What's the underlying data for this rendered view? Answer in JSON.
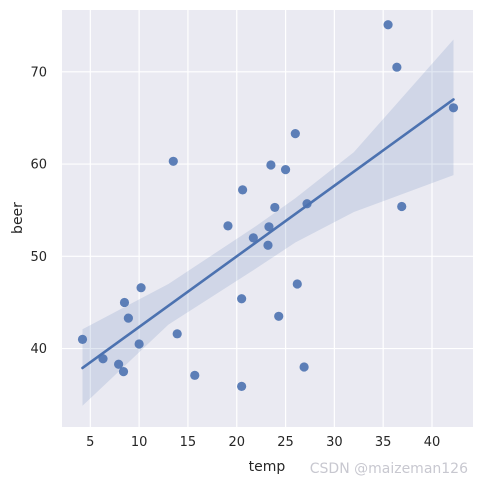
{
  "chart_data": {
    "type": "scatter",
    "xlabel": "temp",
    "ylabel": "beer",
    "xlim": [
      2.1,
      44.2
    ],
    "ylim": [
      31.5,
      76.7
    ],
    "xticks": [
      5,
      10,
      15,
      20,
      25,
      30,
      35,
      40
    ],
    "yticks": [
      40,
      50,
      60,
      70
    ],
    "grid": true,
    "points": [
      {
        "x": 4.2,
        "y": 41.0
      },
      {
        "x": 6.3,
        "y": 38.9
      },
      {
        "x": 7.9,
        "y": 38.3
      },
      {
        "x": 8.4,
        "y": 37.5
      },
      {
        "x": 8.5,
        "y": 45.0
      },
      {
        "x": 8.9,
        "y": 43.3
      },
      {
        "x": 10.0,
        "y": 40.5
      },
      {
        "x": 10.2,
        "y": 46.6
      },
      {
        "x": 13.5,
        "y": 60.3
      },
      {
        "x": 13.9,
        "y": 41.6
      },
      {
        "x": 15.7,
        "y": 37.1
      },
      {
        "x": 19.1,
        "y": 53.3
      },
      {
        "x": 20.5,
        "y": 35.9
      },
      {
        "x": 20.5,
        "y": 45.4
      },
      {
        "x": 20.6,
        "y": 57.2
      },
      {
        "x": 21.7,
        "y": 52.0
      },
      {
        "x": 23.2,
        "y": 51.2
      },
      {
        "x": 23.3,
        "y": 53.2
      },
      {
        "x": 23.5,
        "y": 59.9
      },
      {
        "x": 23.9,
        "y": 55.3
      },
      {
        "x": 24.3,
        "y": 43.5
      },
      {
        "x": 25.0,
        "y": 59.4
      },
      {
        "x": 26.0,
        "y": 63.3
      },
      {
        "x": 26.2,
        "y": 47.0
      },
      {
        "x": 26.9,
        "y": 38.0
      },
      {
        "x": 27.2,
        "y": 55.7
      },
      {
        "x": 35.5,
        "y": 75.1
      },
      {
        "x": 36.4,
        "y": 70.5
      },
      {
        "x": 36.9,
        "y": 55.4
      },
      {
        "x": 42.2,
        "y": 66.1
      }
    ],
    "regression": {
      "x": [
        4.2,
        42.2
      ],
      "y": [
        37.9,
        67.0
      ]
    },
    "confidence_band": {
      "x": [
        4.2,
        13.0,
        22.0,
        26.0,
        32.0,
        42.2
      ],
      "lower": [
        33.8,
        42.6,
        48.7,
        51.5,
        54.8,
        58.8
      ],
      "upper": [
        42.1,
        47.0,
        53.3,
        56.3,
        61.3,
        73.5
      ]
    },
    "colors": {
      "points": "#4c72b0",
      "line": "#4c72b0",
      "band": "#4c72b0",
      "plot_bg": "#eaeaf2",
      "grid": "#ffffff"
    }
  },
  "watermark": "CSDN @maizeman126"
}
